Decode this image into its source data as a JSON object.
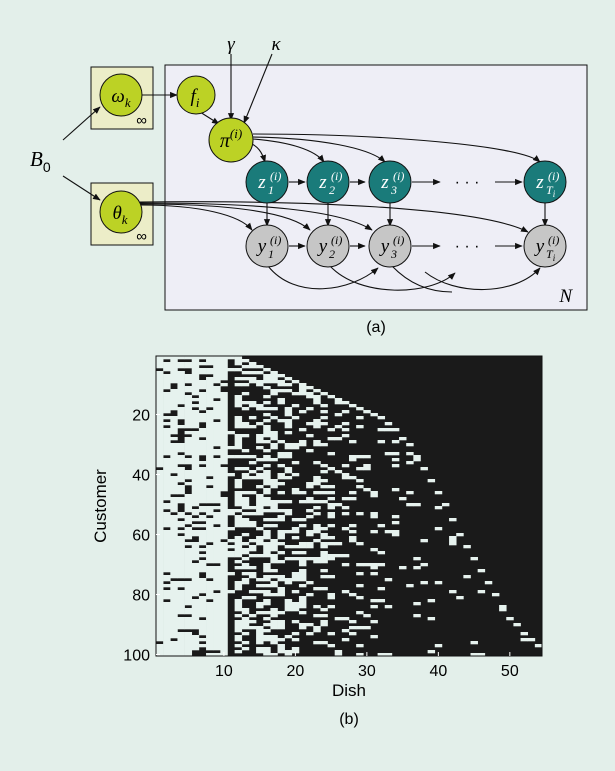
{
  "colors": {
    "background": "#e3efea",
    "plate": "#eeeef6",
    "factor_box": "#ecedc8",
    "lime_node": "#bcd225",
    "teal_node": "#1a7b7a",
    "gray_node": "#c6c6c6",
    "heatmap_off": "#1a1a1a",
    "heatmap_on": "#e6f2ee"
  },
  "panel_a": {
    "caption": "(a)",
    "nodes": {
      "omega": {
        "sym": "ω",
        "sub": "k"
      },
      "theta": {
        "sym": "θ",
        "sub": "k"
      },
      "f": {
        "sym": "f",
        "sub": "i"
      },
      "pi": {
        "sym": "π",
        "sup": "(i)"
      },
      "z": [
        {
          "sym": "z",
          "sub": "1",
          "sup": "(i)"
        },
        {
          "sym": "z",
          "sub": "2",
          "sup": "(i)"
        },
        {
          "sym": "z",
          "sub": "3",
          "sup": "(i)"
        },
        {
          "sym": "z",
          "sub": "T",
          "subsub": "i",
          "sup": "(i)"
        }
      ],
      "y": [
        {
          "sym": "y",
          "sub": "1",
          "sup": "(i)"
        },
        {
          "sym": "y",
          "sub": "2",
          "sup": "(i)"
        },
        {
          "sym": "y",
          "sub": "3",
          "sup": "(i)"
        },
        {
          "sym": "y",
          "sub": "T",
          "subsub": "i",
          "sup": "(i)"
        }
      ]
    },
    "labels": {
      "B0": {
        "sym": "B",
        "sub": "0"
      },
      "gamma": "γ",
      "kappa": "κ",
      "infinity": "∞",
      "plate": "N",
      "ellipsis": "· · ·"
    }
  },
  "panel_b": {
    "caption": "(b)",
    "chart_data": {
      "type": "heatmap",
      "title": "",
      "xlabel": "Dish",
      "ylabel": "Customer",
      "xlim": [
        0.5,
        54.5
      ],
      "ylim": [
        0.5,
        100.5
      ],
      "xticks": [
        10,
        20,
        30,
        40,
        50
      ],
      "yticks": [
        20,
        40,
        60,
        80,
        100
      ],
      "n_customers": 100,
      "n_dishes": 54,
      "encoding": "white = dish sampled by customer, black = not sampled",
      "dish_popularity": [
        0.97,
        0.82,
        0.9,
        0.72,
        0.8,
        0.85,
        0.78,
        0.83,
        0.88,
        0.95,
        0.15,
        0.55,
        0.42,
        0.3,
        0.48,
        0.5,
        0.45,
        0.38,
        0.35,
        0.3,
        0.32,
        0.28,
        0.25,
        0.3,
        0.27,
        0.22,
        0.2,
        0.25,
        0.18,
        0.12,
        0.1,
        0.12,
        0.1,
        0.08,
        0.09,
        0.07,
        0.08,
        0.06,
        0.07,
        0.06,
        0.05,
        0.06,
        0.05,
        0.04,
        0.05,
        0.04,
        0.04,
        0.03,
        0.03,
        0.03,
        0.02,
        0.02,
        0.02,
        0.02
      ],
      "first_customer": [
        1,
        1,
        1,
        1,
        1,
        1,
        1,
        1,
        1,
        1,
        1,
        1,
        2,
        3,
        4,
        5,
        6,
        7,
        8,
        9,
        10,
        11,
        12,
        13,
        14,
        15,
        16,
        17,
        18,
        19,
        20,
        21,
        23,
        25,
        28,
        30,
        34,
        38,
        42,
        46,
        50,
        55,
        60,
        64,
        68,
        72,
        76,
        80,
        84,
        88,
        90,
        93,
        95,
        97
      ]
    }
  }
}
